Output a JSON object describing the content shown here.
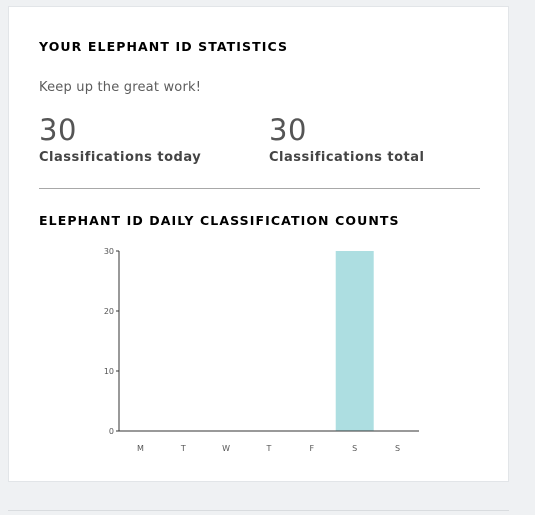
{
  "stats": {
    "heading": "YOUR ELEPHANT ID STATISTICS",
    "subtitle": "Keep up the great work!",
    "today": {
      "value": "30",
      "label": "Classifications today"
    },
    "total": {
      "value": "30",
      "label": "Classifications total"
    }
  },
  "chart_heading": "ELEPHANT ID DAILY CLASSIFICATION COUNTS",
  "colors": {
    "bar": "#addee1",
    "axis": "#333333",
    "page_background": "#eff1f3"
  },
  "chart_data": {
    "type": "bar",
    "title": "ELEPHANT ID DAILY CLASSIFICATION COUNTS",
    "categories": [
      "M",
      "T",
      "W",
      "T",
      "F",
      "S",
      "S"
    ],
    "values": [
      0,
      0,
      0,
      0,
      0,
      30,
      0
    ],
    "yticks": [
      0,
      10,
      20,
      30
    ],
    "ylim": [
      0,
      30
    ],
    "xlabel": "",
    "ylabel": "",
    "grid": false,
    "legend": "none"
  }
}
